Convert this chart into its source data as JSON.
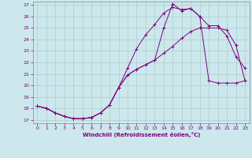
{
  "title": "",
  "xlabel": "Windchill (Refroidissement éolien,°C)",
  "background_color": "#cce8ec",
  "line_color": "#800080",
  "grid_color": "#aacccc",
  "xlim": [
    -0.5,
    23.5
  ],
  "ylim": [
    16.7,
    27.3
  ],
  "yticks": [
    17,
    18,
    19,
    20,
    21,
    22,
    23,
    24,
    25,
    26,
    27
  ],
  "xticks": [
    0,
    1,
    2,
    3,
    4,
    5,
    6,
    7,
    8,
    9,
    10,
    11,
    12,
    13,
    14,
    15,
    16,
    17,
    18,
    19,
    20,
    21,
    22,
    23
  ],
  "line1_x": [
    0,
    1,
    2,
    3,
    4,
    5,
    6,
    7,
    8,
    9,
    10,
    11,
    12,
    13,
    14,
    15,
    16,
    17,
    18,
    19,
    20,
    21,
    22,
    23
  ],
  "line1_y": [
    18.2,
    18.0,
    17.6,
    17.3,
    17.1,
    17.1,
    17.2,
    17.6,
    18.3,
    19.8,
    20.9,
    21.4,
    21.8,
    22.2,
    22.8,
    23.4,
    24.1,
    24.7,
    25.0,
    25.0,
    25.0,
    24.8,
    23.5,
    20.4
  ],
  "line2_x": [
    0,
    1,
    2,
    3,
    4,
    5,
    6,
    7,
    8,
    9,
    10,
    11,
    12,
    13,
    14,
    15,
    16,
    17,
    18,
    19,
    20,
    21,
    22,
    23
  ],
  "line2_y": [
    18.2,
    18.0,
    17.6,
    17.3,
    17.1,
    17.1,
    17.2,
    17.6,
    18.3,
    19.8,
    21.5,
    23.2,
    24.4,
    25.3,
    26.3,
    26.8,
    26.6,
    26.7,
    26.0,
    25.2,
    25.2,
    24.3,
    22.5,
    21.5
  ],
  "line3_x": [
    0,
    1,
    2,
    3,
    4,
    5,
    6,
    7,
    8,
    9,
    10,
    11,
    12,
    13,
    14,
    15,
    16,
    17,
    18,
    19,
    20,
    21,
    22,
    23
  ],
  "line3_y": [
    18.2,
    18.0,
    17.6,
    17.3,
    17.1,
    17.1,
    17.2,
    17.6,
    18.3,
    19.8,
    20.9,
    21.4,
    21.8,
    22.2,
    25.0,
    27.1,
    26.5,
    26.7,
    26.0,
    20.4,
    20.2,
    20.2,
    20.2,
    20.4
  ]
}
